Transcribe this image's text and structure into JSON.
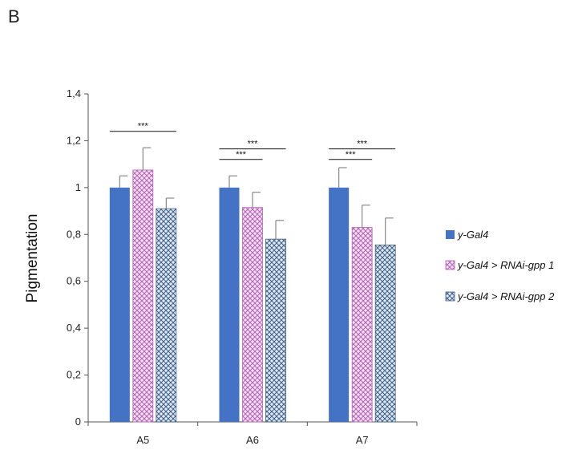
{
  "panel_label": "B",
  "chart_data": {
    "type": "bar",
    "ylabel": "Pigmentation",
    "ylim": [
      0,
      1.4
    ],
    "yticks": [
      "0",
      "0,2",
      "0,4",
      "0,6",
      "0,8",
      "1",
      "1,2",
      "1,4"
    ],
    "categories": [
      "A5",
      "A6",
      "A7"
    ],
    "series": [
      {
        "name": "y-Gal4",
        "values": [
          1.0,
          1.0,
          1.0
        ],
        "errors": [
          0.05,
          0.05,
          0.085
        ],
        "color": "#4472c4",
        "pattern": "solid"
      },
      {
        "name": "y-Gal4 > RNAi-gpp 1",
        "values": [
          1.075,
          0.915,
          0.83
        ],
        "errors": [
          0.095,
          0.065,
          0.095
        ],
        "color": "#c080c0",
        "pattern": "crosshatch-pink"
      },
      {
        "name": "y-Gal4 > RNAi-gpp 2",
        "values": [
          0.91,
          0.78,
          0.755
        ],
        "errors": [
          0.045,
          0.08,
          0.115
        ],
        "color": "#5a7fa8",
        "pattern": "crosshatch-blue"
      }
    ],
    "significance": [
      {
        "category": "A5",
        "from_series": 0,
        "to_series": 2,
        "label": "***",
        "y": 1.24
      },
      {
        "category": "A6",
        "from_series": 0,
        "to_series": 1,
        "label": "***",
        "y": 1.12
      },
      {
        "category": "A6",
        "from_series": 0,
        "to_series": 2,
        "label": "***",
        "y": 1.165
      },
      {
        "category": "A7",
        "from_series": 0,
        "to_series": 1,
        "label": "***",
        "y": 1.12
      },
      {
        "category": "A7",
        "from_series": 0,
        "to_series": 2,
        "label": "***",
        "y": 1.165
      }
    ],
    "legend_position": "right",
    "grid": false
  }
}
